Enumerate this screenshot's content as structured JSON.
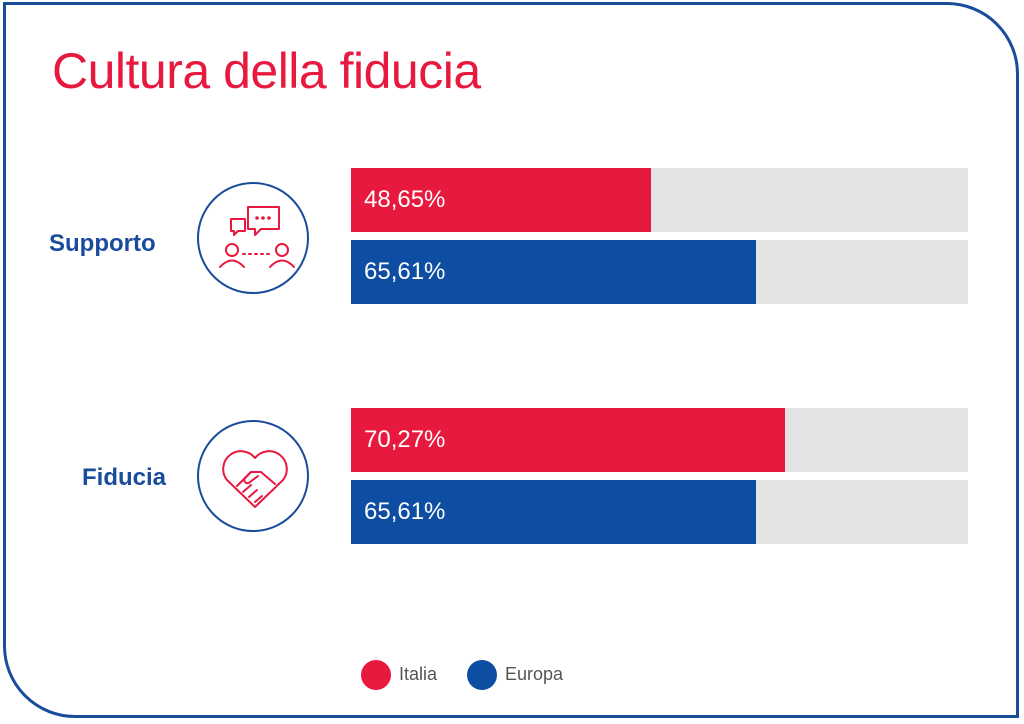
{
  "chart_data": {
    "type": "bar",
    "orientation": "horizontal",
    "title": "Cultura della fiducia",
    "categories": [
      "Supporto",
      "Fiducia"
    ],
    "series": [
      {
        "name": "Italia",
        "color": "#e8193e",
        "values": [
          48.65,
          70.27
        ],
        "labels": [
          "48,65%",
          "70,27%"
        ]
      },
      {
        "name": "Europa",
        "color": "#0d4ea3",
        "values": [
          65.61,
          65.61
        ],
        "labels": [
          "65,61%",
          "65,61%"
        ]
      }
    ],
    "xlim": [
      0,
      100
    ],
    "track_color": "#e4e4e4",
    "legend": "bottom-center",
    "grid": false
  },
  "icons": {
    "supporto": "chat-people-icon",
    "fiducia": "heart-handshake-icon"
  },
  "colors": {
    "title": "#e8193e",
    "label": "#1a4c9c",
    "border": "#1a4c9c"
  }
}
